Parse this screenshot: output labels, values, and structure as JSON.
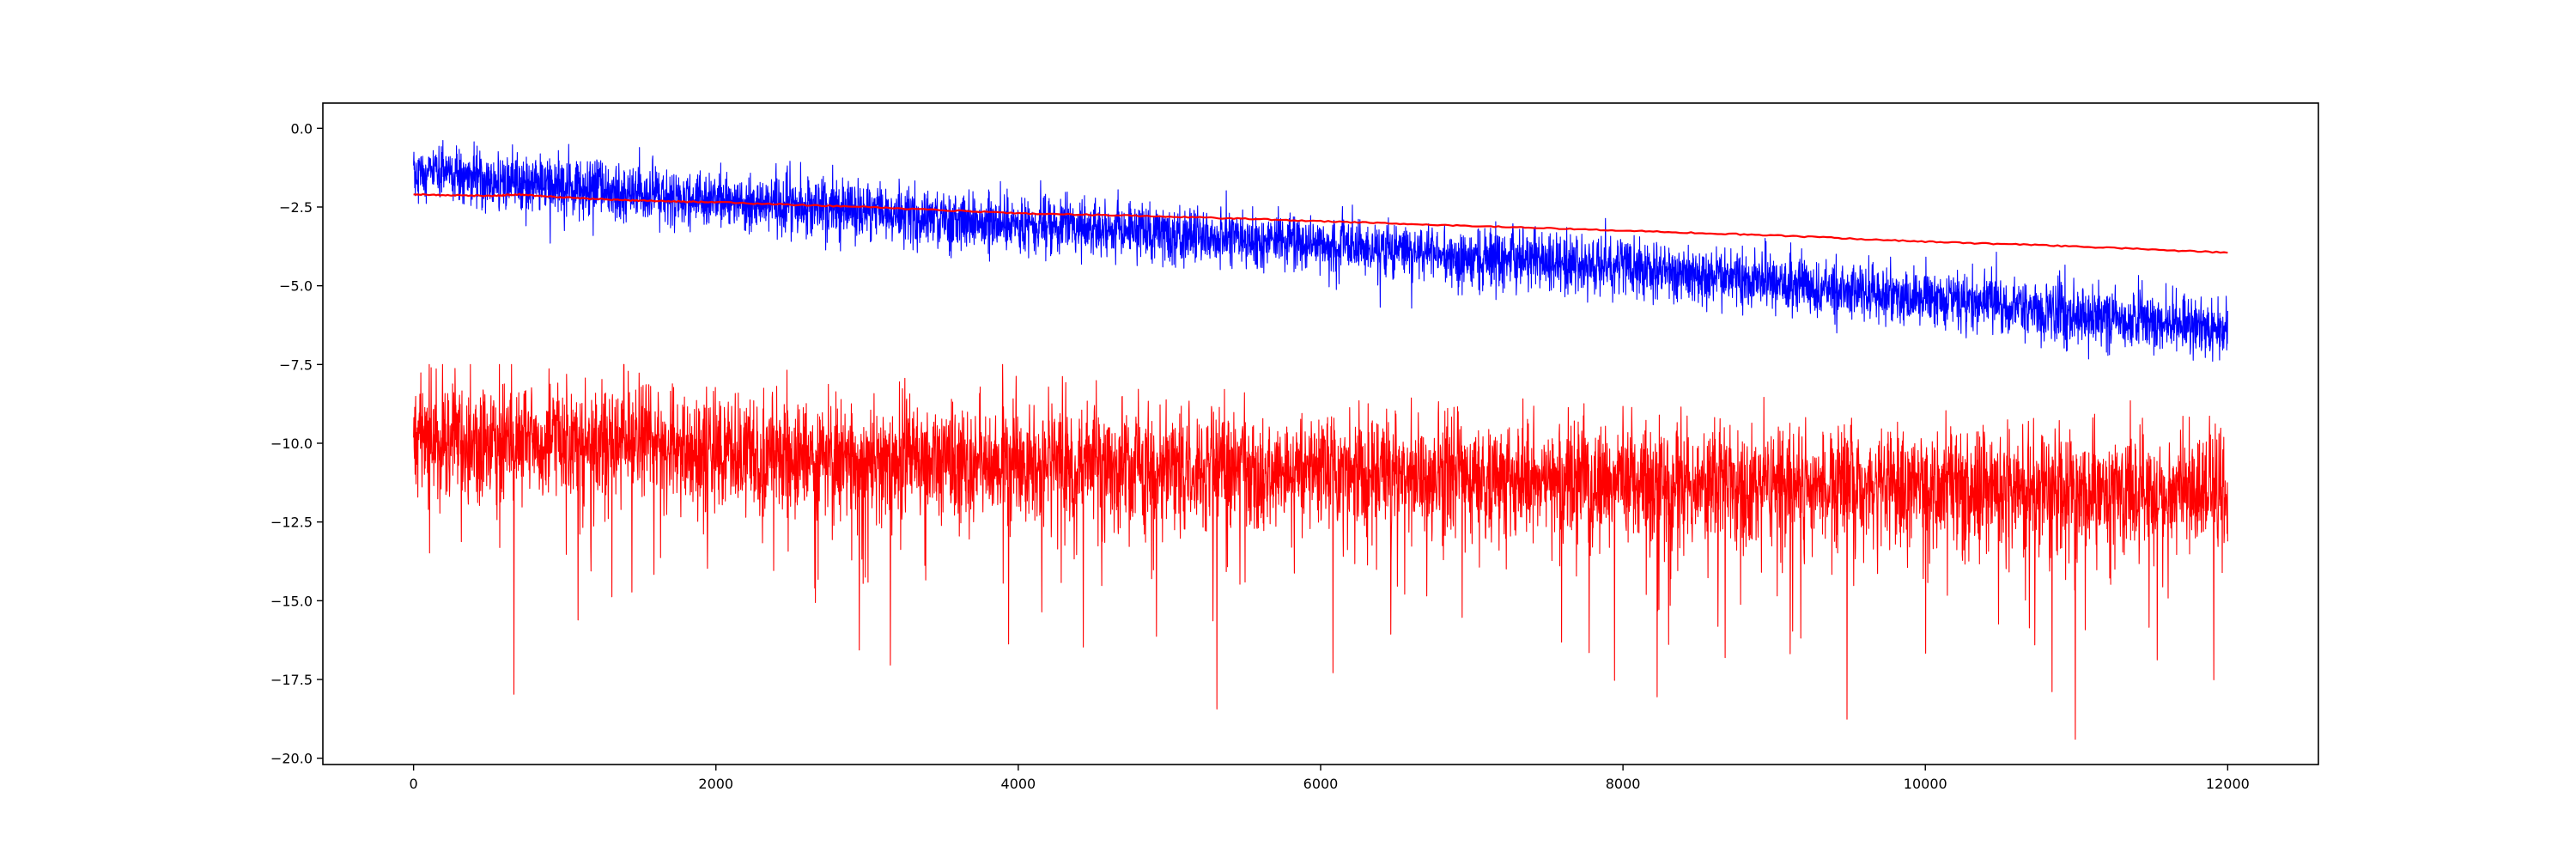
{
  "chart_data": {
    "type": "line",
    "title": "",
    "xlabel": "",
    "ylabel": "",
    "xlim": [
      -600,
      12600
    ],
    "ylim": [
      -20.2,
      0.8
    ],
    "grid": false,
    "legend": "none",
    "x_ticks": [
      0,
      2000,
      4000,
      6000,
      8000,
      10000,
      12000
    ],
    "x_tick_labels": [
      "0",
      "2000",
      "4000",
      "6000",
      "8000",
      "10000",
      "12000"
    ],
    "y_ticks": [
      0.0,
      -2.5,
      -5.0,
      -7.5,
      -10.0,
      -12.5,
      -15.0,
      -17.5,
      -20.0
    ],
    "y_tick_labels": [
      "0.0",
      "−2.5",
      "−5.0",
      "−7.5",
      "−10.0",
      "−12.5",
      "−15.0",
      "−17.5",
      "−20.0"
    ],
    "series": [
      {
        "color": "#0000ff",
        "style": "noisy",
        "x_range": [
          0,
          12000
        ],
        "points": 12000,
        "trend_x": [
          0,
          1000,
          2000,
          4000,
          6000,
          8000,
          10000,
          11000,
          12000
        ],
        "trend_y": [
          -1.4,
          -1.9,
          -2.3,
          -3.0,
          -3.7,
          -4.4,
          -5.4,
          -5.9,
          -6.4
        ],
        "noise_sd": 0.45,
        "observed_max": -0.2,
        "observed_min": -8.3
      },
      {
        "color": "#ff0000",
        "style": "smooth",
        "x": [
          0,
          500,
          700,
          1000,
          1500,
          2000,
          3000,
          4000,
          5000,
          6000,
          7000,
          8000,
          9000,
          10000,
          11000,
          12000
        ],
        "y": [
          -2.1,
          -2.15,
          -2.1,
          -2.2,
          -2.3,
          -2.35,
          -2.5,
          -2.7,
          -2.8,
          -2.95,
          -3.1,
          -3.25,
          -3.4,
          -3.6,
          -3.75,
          -3.95
        ]
      },
      {
        "color": "#ff0000",
        "style": "noisy",
        "x_range": [
          0,
          12000
        ],
        "points": 12000,
        "trend_x": [
          0,
          1600,
          1700,
          4000,
          6000,
          8000,
          10000,
          12000
        ],
        "trend_y": [
          -9.9,
          -9.9,
          -10.3,
          -10.6,
          -10.9,
          -11.2,
          -11.4,
          -11.6
        ],
        "noise_sd": 0.9,
        "observed_max": -7.5,
        "observed_min": -19.4
      }
    ]
  }
}
